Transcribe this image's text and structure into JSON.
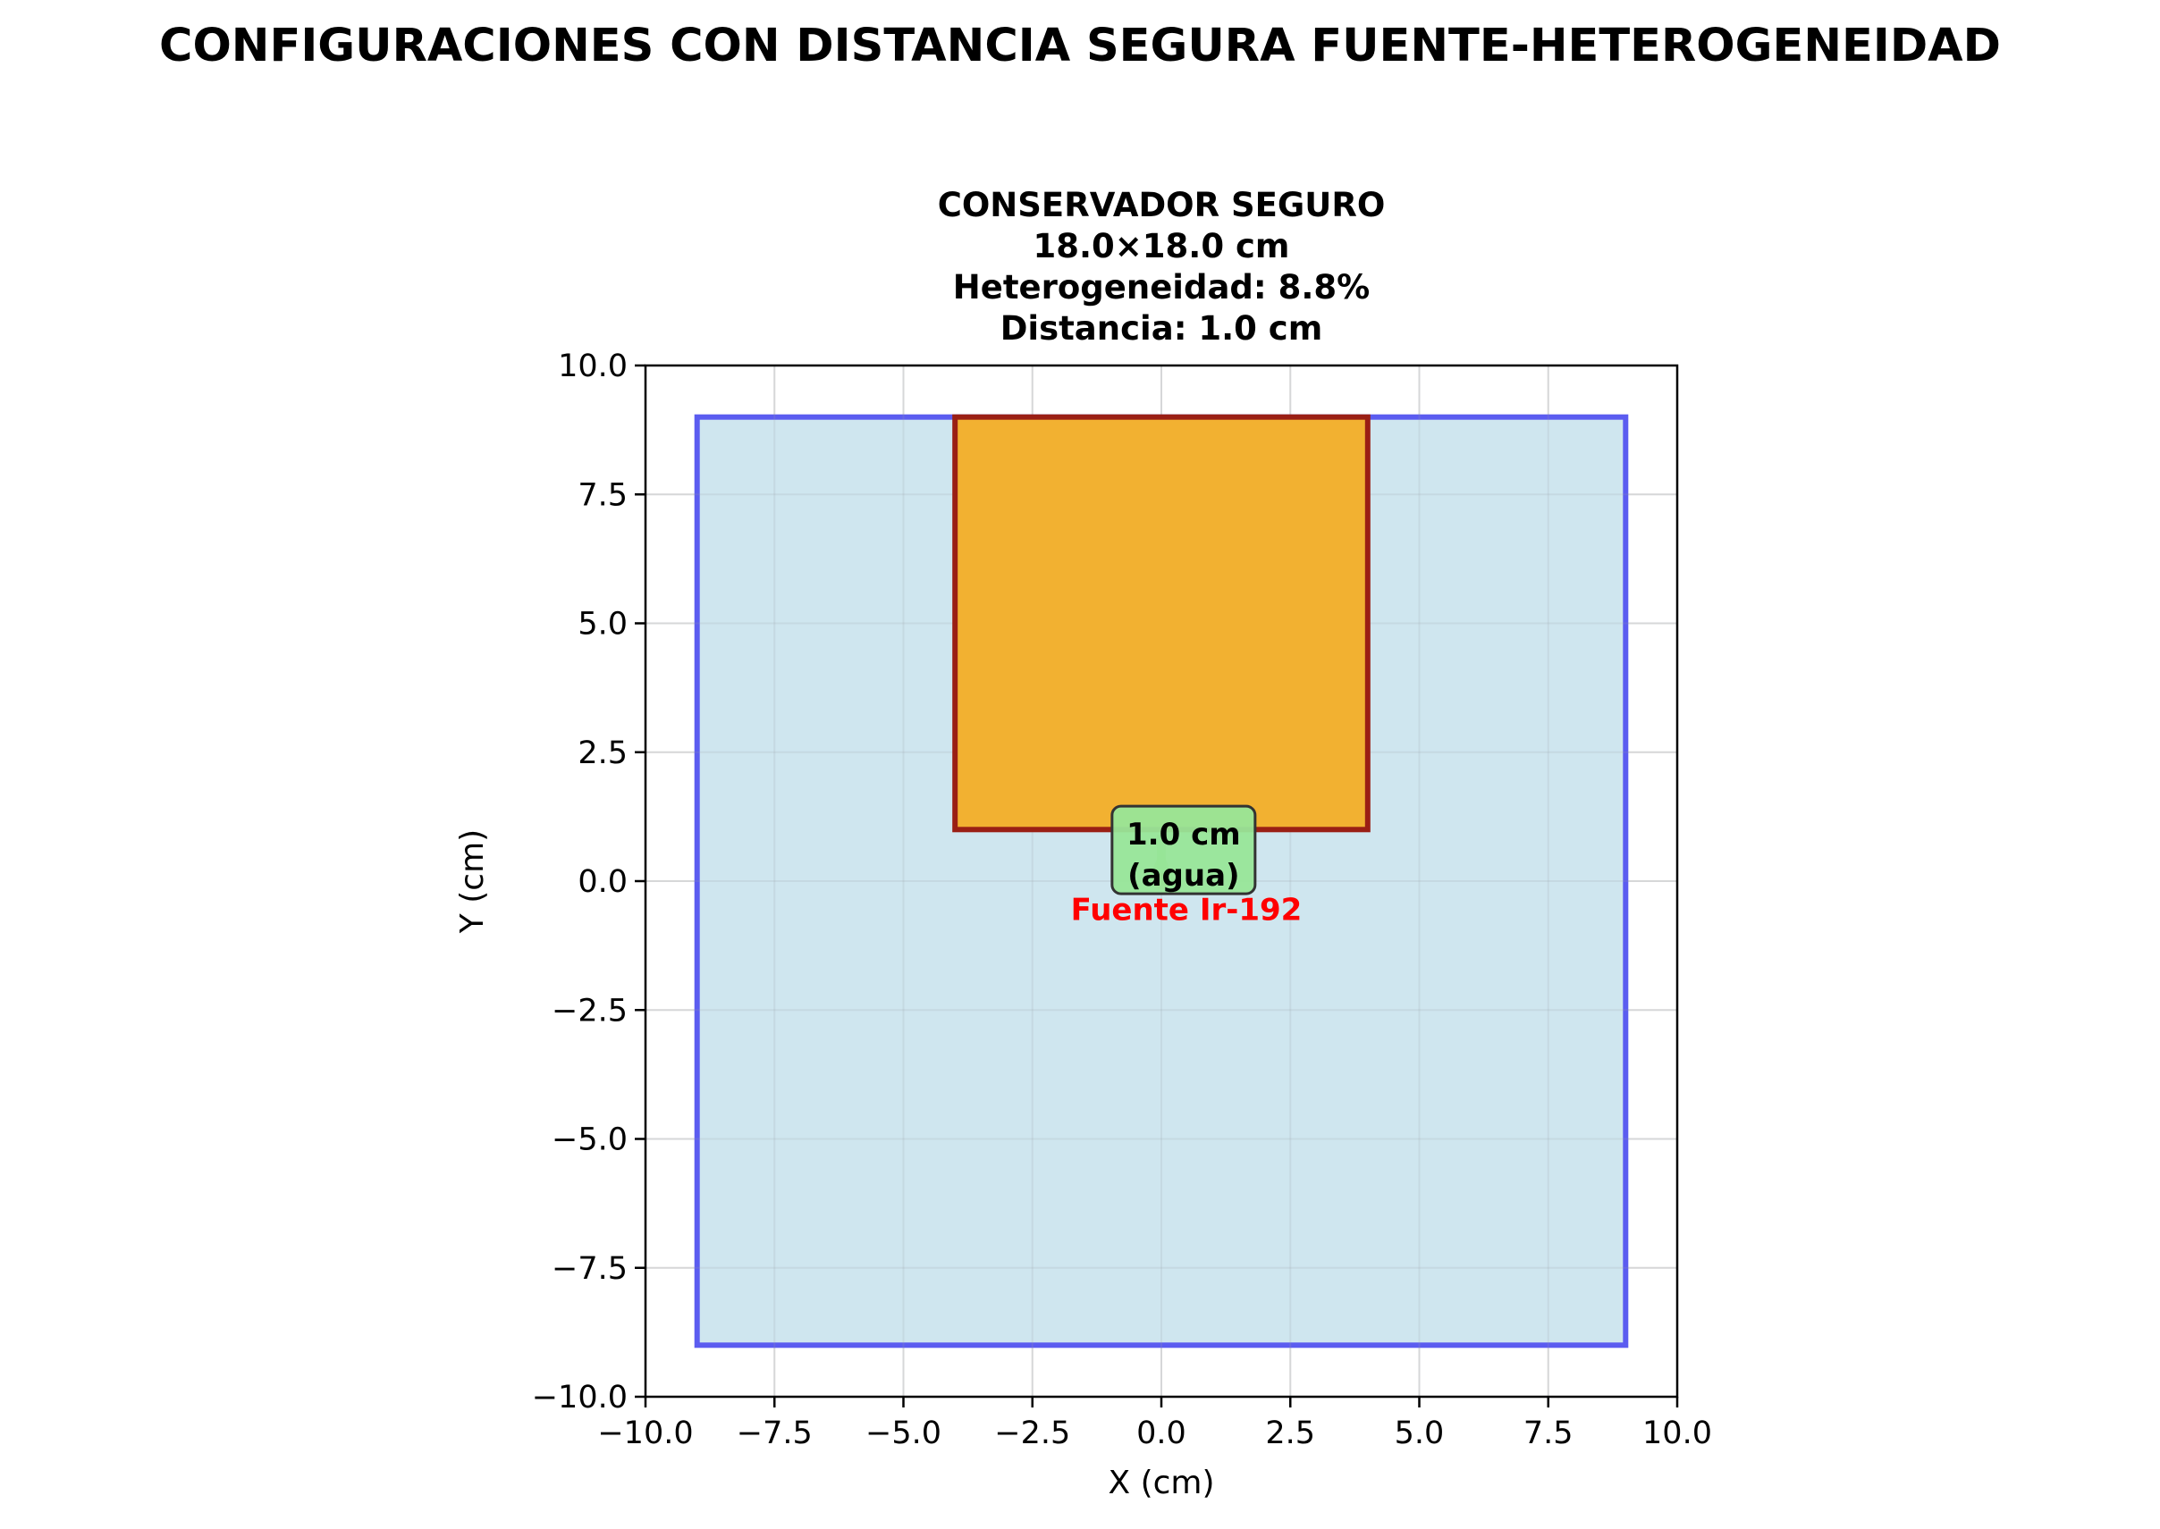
{
  "title": "CONFIGURACIONES CON DISTANCIA SEGURA FUENTE-HETEROGENEIDAD",
  "chart_data": {
    "type": "diagram",
    "subtitle_lines": [
      "CONSERVADOR SEGURO",
      "18.0×18.0 cm",
      "Heterogeneidad: 8.8%",
      "Distancia: 1.0 cm"
    ],
    "xlabel": "X (cm)",
    "ylabel": "Y (cm)",
    "xlim": [
      -10,
      10
    ],
    "ylim": [
      -10,
      10
    ],
    "xticks": [
      -10,
      -7.5,
      -5,
      -2.5,
      0,
      2.5,
      5,
      7.5,
      10
    ],
    "yticks": [
      -10,
      -7.5,
      -5,
      -2.5,
      0,
      2.5,
      5,
      7.5,
      10
    ],
    "xtick_labels": [
      "−10.0",
      "−7.5",
      "−5.0",
      "−2.5",
      "0.0",
      "2.5",
      "5.0",
      "7.5",
      "10.0"
    ],
    "ytick_labels": [
      "−10.0",
      "−7.5",
      "−5.0",
      "−2.5",
      "0.0",
      "2.5",
      "5.0",
      "7.5",
      "10.0"
    ],
    "grid": true,
    "phantom": {
      "x0": -9,
      "x1": 9,
      "y0": -9,
      "y1": 9,
      "fill": "#cfe6ef",
      "edge": "#5b5cf0"
    },
    "heterogeneity": {
      "x0": -4,
      "x1": 4,
      "y0": 1,
      "y1": 9,
      "fill": "#f2b131",
      "edge": "#9a1f14"
    },
    "source": {
      "x": 0,
      "y": 0,
      "label": "Fuente Ir-192",
      "label_y": -0.55,
      "color": "#ff0000"
    },
    "distance_arrow": {
      "x": 0,
      "y0": 0,
      "y1": 1,
      "color": "#7fc97f"
    },
    "distance_box": {
      "x": 0.5,
      "y": 0.5,
      "lines": [
        "1.0 cm",
        "(agua)"
      ],
      "fill": "#98e698",
      "edge": "#333333"
    }
  }
}
